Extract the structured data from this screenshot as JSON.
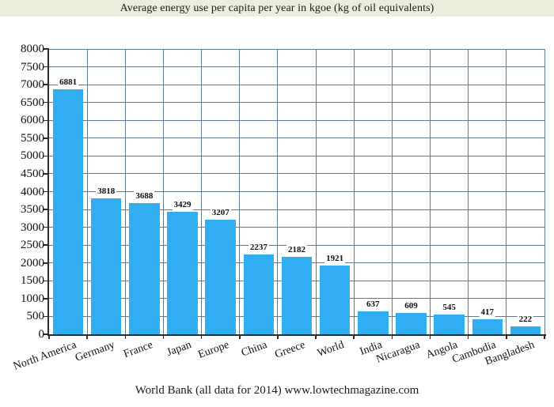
{
  "header": {
    "title": "Average energy use per capita per year in kgoe (kg of oil equivalents)"
  },
  "footer": {
    "caption": "World Bank (all data for 2014) www.lowtechmagazine.com"
  },
  "colors": {
    "title_bar_bg": "#EBEEDA",
    "bar": "#31AEF2",
    "grid": "#64788B",
    "axis": "#2B2B2B",
    "text": "#111111"
  },
  "chart_data": {
    "type": "bar",
    "title": "Average energy use per capita per year in kgoe (kg of oil equivalents)",
    "categories": [
      "North America",
      "Germany",
      "France",
      "Japan",
      "Europe",
      "China",
      "Greece",
      "World",
      "India",
      "Nicaragua",
      "Angola",
      "Cambodia",
      "Bangladesh"
    ],
    "values": [
      6881,
      3818,
      3688,
      3429,
      3207,
      2237,
      2182,
      1921,
      637,
      609,
      545,
      417,
      222
    ],
    "value_labels": [
      "6881",
      "3818",
      "3688",
      "3429",
      "3207",
      "2237",
      "2182",
      "1921",
      "637",
      "609",
      "545",
      "417",
      "222"
    ],
    "xlabel": "",
    "ylabel": "",
    "ylim": [
      0,
      8000
    ],
    "ytick_step": 500,
    "yticks": [
      0,
      500,
      1000,
      1500,
      2000,
      2500,
      3000,
      3500,
      4000,
      4500,
      5000,
      5500,
      6000,
      6500,
      7000,
      7500,
      8000
    ],
    "grid": true,
    "legend": false,
    "source": "World Bank (all data for 2014) www.lowtechmagazine.com"
  }
}
